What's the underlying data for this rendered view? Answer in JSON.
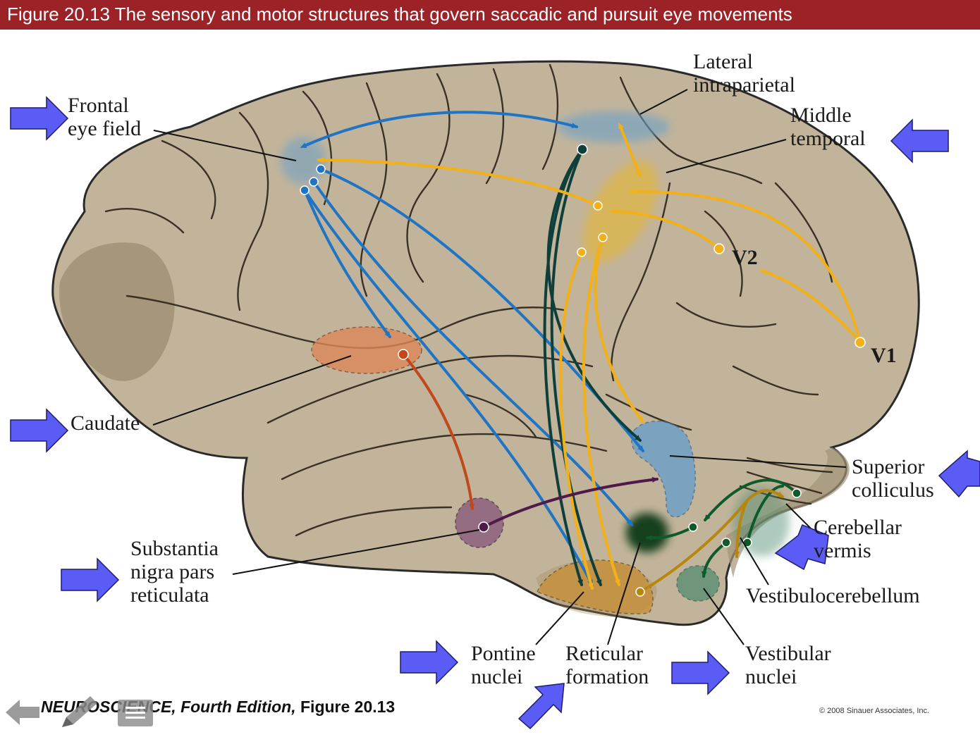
{
  "title": "Figure 20.13  The sensory and motor structures that govern saccadic and pursuit eye movements",
  "labels": {
    "frontal_eye_field": [
      "Frontal",
      "eye field"
    ],
    "lateral_intraparietal": [
      "Lateral",
      "intraparietal"
    ],
    "middle_temporal": [
      "Middle",
      "temporal"
    ],
    "v2": "V2",
    "v1": "V1",
    "caudate": "Caudate",
    "superior_colliculus": [
      "Superior",
      "colliculus"
    ],
    "cerebellar_vermis": [
      "Cerebellar",
      "vermis"
    ],
    "substantia_nigra": [
      "Substantia",
      "nigra pars",
      "reticulata"
    ],
    "vestibulocerebellum": "Vestibulocerebellum",
    "pontine_nuclei": [
      "Pontine",
      "nuclei"
    ],
    "reticular_formation": [
      "Reticular",
      "formation"
    ],
    "vestibular_nuclei": [
      "Vestibular",
      "nuclei"
    ]
  },
  "caption": {
    "book": "NEUROSCIENCE, Fourth Edition,",
    "figure": " Figure 20.13"
  },
  "copyright": "© 2008 Sinauer Associates, Inc.",
  "colors": {
    "title_bar": "#9b2226",
    "brain": "#c2b49b",
    "pointer_arrow": "#5b5cf6",
    "pathway_blue": "#1f74c4",
    "pathway_yellow": "#f2b118",
    "pathway_dark_teal": "#0f3f3a",
    "pathway_orange": "#c2481b",
    "pathway_purple": "#4e1a4a",
    "pathway_green": "#0f5a2a",
    "pathway_brown": "#b8860b"
  },
  "icons": [
    "back-arrow-icon",
    "pencil-icon",
    "menu-icon",
    "pointer-arrow-icon"
  ]
}
